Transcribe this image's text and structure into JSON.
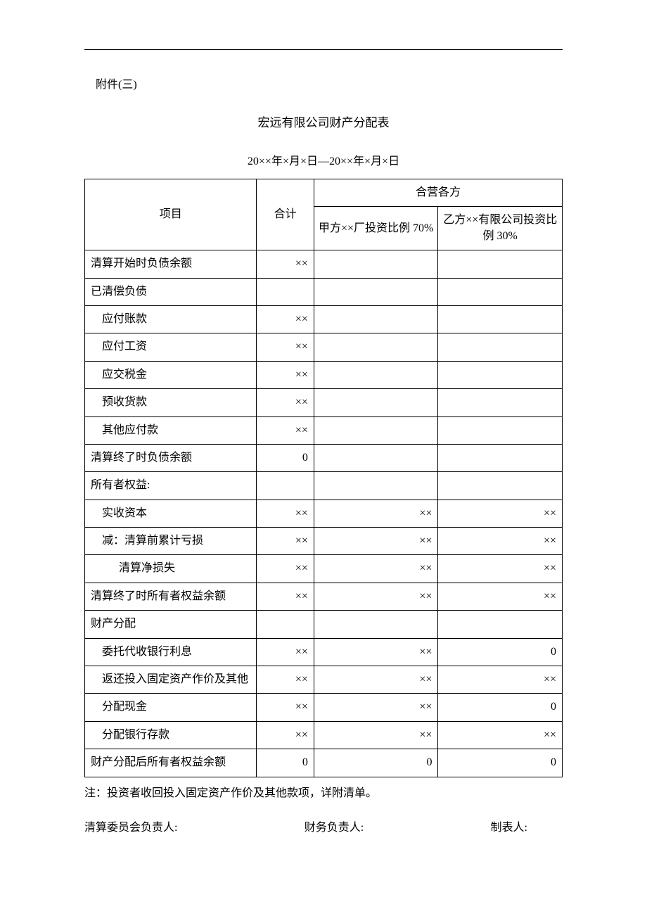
{
  "attachment_label": "附件(三)",
  "title": "宏远有限公司财产分配表",
  "date_range": "20××年×月×日—20××年×月×日",
  "headers": {
    "item": "项目",
    "total": "合计",
    "parties_group": "合营各方",
    "party_a": "甲方××厂投资比例 70%",
    "party_b": "乙方××有限公司投资比例 30%"
  },
  "rows": [
    {
      "label": "清算开始时负债余额",
      "indent": 0,
      "total": "××",
      "a": "",
      "b": ""
    },
    {
      "label": "已清偿负债",
      "indent": 0,
      "total": "",
      "a": "",
      "b": ""
    },
    {
      "label": "应付账款",
      "indent": 1,
      "total": "××",
      "a": "",
      "b": ""
    },
    {
      "label": "应付工资",
      "indent": 1,
      "total": "××",
      "a": "",
      "b": ""
    },
    {
      "label": "应交税金",
      "indent": 1,
      "total": "××",
      "a": "",
      "b": ""
    },
    {
      "label": "预收货款",
      "indent": 1,
      "total": "××",
      "a": "",
      "b": ""
    },
    {
      "label": "其他应付款",
      "indent": 1,
      "total": "××",
      "a": "",
      "b": ""
    },
    {
      "label": "清算终了时负债余额",
      "indent": 0,
      "total": "0",
      "a": "",
      "b": ""
    },
    {
      "label": "所有者权益:",
      "indent": 0,
      "total": "",
      "a": "",
      "b": ""
    },
    {
      "label": "实收资本",
      "indent": 1,
      "total": "××",
      "a": "××",
      "b": "××"
    },
    {
      "label": "减：清算前累计亏损",
      "indent": 1,
      "total": "××",
      "a": "××",
      "b": "××"
    },
    {
      "label": "清算净损失",
      "indent": 2,
      "total": "××",
      "a": "××",
      "b": "××"
    },
    {
      "label": "清算终了时所有者权益余额",
      "indent": 0,
      "total": "××",
      "a": "××",
      "b": "××"
    },
    {
      "label": "财产分配",
      "indent": 0,
      "total": "",
      "a": "",
      "b": ""
    },
    {
      "label": "委托代收银行利息",
      "indent": 1,
      "total": "××",
      "a": "××",
      "b": "0"
    },
    {
      "label": "返还投入固定资产作价及其他",
      "indent": 1,
      "total": "××",
      "a": "××",
      "b": "××"
    },
    {
      "label": "分配现金",
      "indent": 1,
      "total": "××",
      "a": "××",
      "b": "0"
    },
    {
      "label": "分配银行存款",
      "indent": 1,
      "total": "××",
      "a": "××",
      "b": "××"
    },
    {
      "label": "财产分配后所有者权益余额",
      "indent": 0,
      "total": "0",
      "a": "0",
      "b": "0"
    }
  ],
  "note": "注：投资者收回投入固定资产作价及其他款项，详附清单。",
  "signatures": {
    "s1": "清算委员会负责人:",
    "s2": "财务负责人:",
    "s3": "制表人:"
  }
}
